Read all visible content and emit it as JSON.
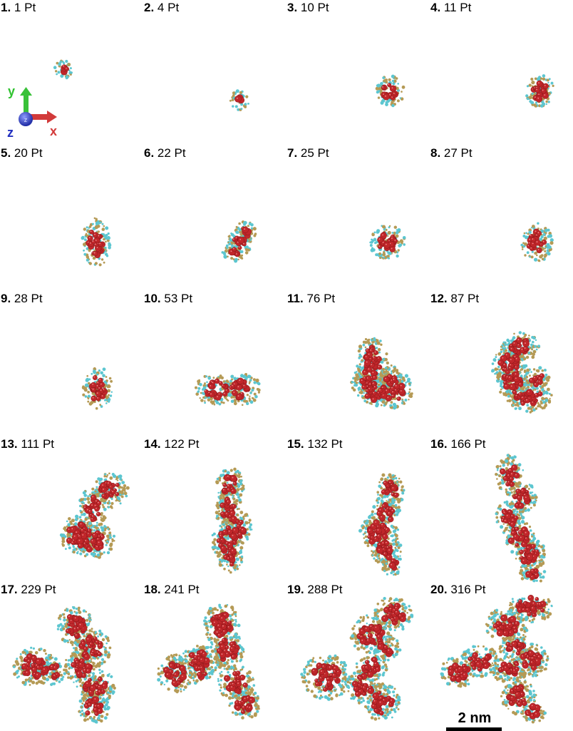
{
  "panels": [
    {
      "index": "1.",
      "label": "1 Pt"
    },
    {
      "index": "2.",
      "label": "4 Pt"
    },
    {
      "index": "3.",
      "label": "10 Pt"
    },
    {
      "index": "4.",
      "label": "11 Pt"
    },
    {
      "index": "5.",
      "label": "20 Pt"
    },
    {
      "index": "6.",
      "label": "22 Pt"
    },
    {
      "index": "7.",
      "label": "25 Pt"
    },
    {
      "index": "8.",
      "label": "27 Pt"
    },
    {
      "index": "9.",
      "label": "28 Pt"
    },
    {
      "index": "10.",
      "label": "53 Pt"
    },
    {
      "index": "11.",
      "label": "76 Pt"
    },
    {
      "index": "12.",
      "label": "87 Pt"
    },
    {
      "index": "13.",
      "label": "111 Pt"
    },
    {
      "index": "14.",
      "label": "122 Pt"
    },
    {
      "index": "15.",
      "label": "132 Pt"
    },
    {
      "index": "16.",
      "label": "166 Pt"
    },
    {
      "index": "17.",
      "label": "229 Pt"
    },
    {
      "index": "18.",
      "label": "241 Pt"
    },
    {
      "index": "19.",
      "label": "288 Pt"
    },
    {
      "index": "20.",
      "label": "316 Pt"
    }
  ],
  "axes": {
    "x": "x",
    "y": "y",
    "z": "z",
    "z_center": "z"
  },
  "scalebar": {
    "label": "2 nm"
  },
  "colors": {
    "pt_atom": "#c0262a",
    "ligand_yellow": "#b59a55",
    "ligand_cyan": "#5cc6d0",
    "axis_x": "#d23a3a",
    "axis_y": "#2fc22f",
    "axis_z": "#3244c8"
  }
}
